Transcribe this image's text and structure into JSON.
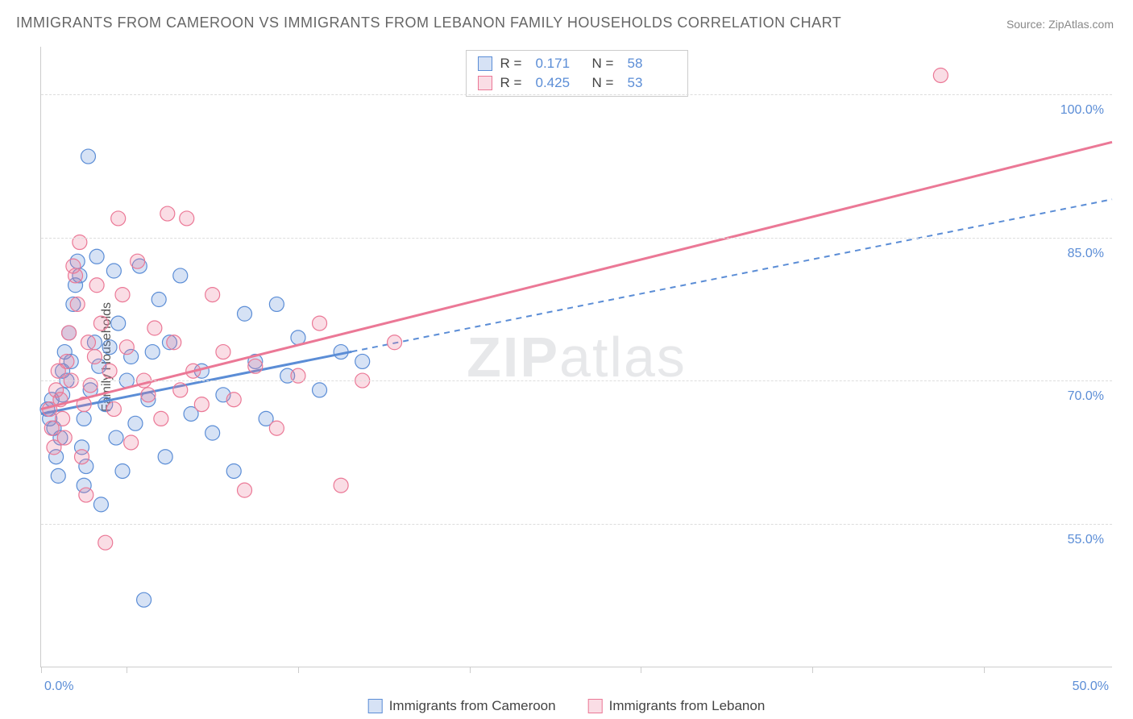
{
  "title": "IMMIGRANTS FROM CAMEROON VS IMMIGRANTS FROM LEBANON FAMILY HOUSEHOLDS CORRELATION CHART",
  "source": "Source: ZipAtlas.com",
  "chart": {
    "type": "scatter",
    "ylabel": "Family Households",
    "xlim": [
      0,
      50
    ],
    "ylim": [
      40,
      105
    ],
    "yticks": [
      55.0,
      70.0,
      85.0,
      100.0
    ],
    "ytick_labels": [
      "55.0%",
      "70.0%",
      "85.0%",
      "100.0%"
    ],
    "xtick_positions_pct": [
      0,
      8,
      24,
      40,
      56,
      72,
      88
    ],
    "xtick_labels": {
      "left": "0.0%",
      "right": "50.0%"
    },
    "background_color": "#ffffff",
    "grid_color": "#dddddd",
    "axis_color": "#cccccc",
    "tick_label_color": "#5b8dd6",
    "series": [
      {
        "name": "Immigrants from Cameroon",
        "color_fill": "rgba(91,141,214,0.25)",
        "color_stroke": "#5b8dd6",
        "r_value": "0.171",
        "n_value": "58",
        "trend": {
          "x0": 0,
          "y0": 66.5,
          "x1": 50,
          "y1": 89.0
        },
        "trend_dash_break_x": 14.5,
        "marker_radius": 9,
        "points": [
          [
            0.3,
            67
          ],
          [
            0.4,
            66
          ],
          [
            0.5,
            68
          ],
          [
            0.6,
            65
          ],
          [
            0.7,
            62
          ],
          [
            0.8,
            60
          ],
          [
            0.9,
            64
          ],
          [
            1.0,
            68.5
          ],
          [
            1.0,
            71
          ],
          [
            1.1,
            73
          ],
          [
            1.2,
            70
          ],
          [
            1.3,
            75
          ],
          [
            1.4,
            72
          ],
          [
            1.5,
            78
          ],
          [
            1.6,
            80
          ],
          [
            1.7,
            82.5
          ],
          [
            1.8,
            81
          ],
          [
            1.9,
            63
          ],
          [
            2.0,
            59
          ],
          [
            2.0,
            66
          ],
          [
            2.1,
            61
          ],
          [
            2.2,
            93.5
          ],
          [
            2.3,
            69
          ],
          [
            2.5,
            74
          ],
          [
            2.6,
            83
          ],
          [
            2.7,
            71.5
          ],
          [
            2.8,
            57
          ],
          [
            3.0,
            67.5
          ],
          [
            3.2,
            73.5
          ],
          [
            3.4,
            81.5
          ],
          [
            3.5,
            64
          ],
          [
            3.6,
            76
          ],
          [
            3.8,
            60.5
          ],
          [
            4.0,
            70
          ],
          [
            4.2,
            72.5
          ],
          [
            4.4,
            65.5
          ],
          [
            4.6,
            82
          ],
          [
            4.8,
            47
          ],
          [
            5.0,
            68
          ],
          [
            5.2,
            73
          ],
          [
            5.5,
            78.5
          ],
          [
            5.8,
            62
          ],
          [
            6.0,
            74
          ],
          [
            6.5,
            81
          ],
          [
            7.0,
            66.5
          ],
          [
            7.5,
            71
          ],
          [
            8.0,
            64.5
          ],
          [
            8.5,
            68.5
          ],
          [
            9.0,
            60.5
          ],
          [
            9.5,
            77
          ],
          [
            10.0,
            72
          ],
          [
            10.5,
            66
          ],
          [
            11.0,
            78
          ],
          [
            11.5,
            70.5
          ],
          [
            12.0,
            74.5
          ],
          [
            13.0,
            69
          ],
          [
            14.0,
            73
          ],
          [
            15.0,
            72
          ]
        ]
      },
      {
        "name": "Immigrants from Lebanon",
        "color_fill": "rgba(235,120,150,0.25)",
        "color_stroke": "#eb7896",
        "r_value": "0.425",
        "n_value": "53",
        "trend": {
          "x0": 0,
          "y0": 67.0,
          "x1": 50,
          "y1": 95.0
        },
        "marker_radius": 9,
        "points": [
          [
            0.4,
            67
          ],
          [
            0.5,
            65
          ],
          [
            0.6,
            63
          ],
          [
            0.7,
            69
          ],
          [
            0.8,
            71
          ],
          [
            0.9,
            68
          ],
          [
            1.0,
            66
          ],
          [
            1.1,
            64
          ],
          [
            1.2,
            72
          ],
          [
            1.3,
            75
          ],
          [
            1.4,
            70
          ],
          [
            1.5,
            82
          ],
          [
            1.6,
            81
          ],
          [
            1.7,
            78
          ],
          [
            1.8,
            84.5
          ],
          [
            1.9,
            62
          ],
          [
            2.0,
            67.5
          ],
          [
            2.1,
            58
          ],
          [
            2.2,
            74
          ],
          [
            2.3,
            69.5
          ],
          [
            2.5,
            72.5
          ],
          [
            2.6,
            80
          ],
          [
            2.8,
            76
          ],
          [
            3.0,
            53
          ],
          [
            3.2,
            71
          ],
          [
            3.4,
            67
          ],
          [
            3.6,
            87
          ],
          [
            3.8,
            79
          ],
          [
            4.0,
            73.5
          ],
          [
            4.2,
            63.5
          ],
          [
            4.5,
            82.5
          ],
          [
            4.8,
            70
          ],
          [
            5.0,
            68.5
          ],
          [
            5.3,
            75.5
          ],
          [
            5.6,
            66
          ],
          [
            5.9,
            87.5
          ],
          [
            6.2,
            74
          ],
          [
            6.5,
            69
          ],
          [
            6.8,
            87
          ],
          [
            7.1,
            71
          ],
          [
            7.5,
            67.5
          ],
          [
            8.0,
            79
          ],
          [
            8.5,
            73
          ],
          [
            9.0,
            68
          ],
          [
            9.5,
            58.5
          ],
          [
            10.0,
            71.5
          ],
          [
            11.0,
            65
          ],
          [
            12.0,
            70.5
          ],
          [
            13.0,
            76
          ],
          [
            14.0,
            59
          ],
          [
            15.0,
            70
          ],
          [
            16.5,
            74
          ],
          [
            42.0,
            102
          ]
        ]
      }
    ],
    "watermark": {
      "bold": "ZIP",
      "light": "atlas"
    }
  },
  "stats_box_labels": {
    "r": "R =",
    "n": "N ="
  },
  "legend_position": "bottom-center"
}
